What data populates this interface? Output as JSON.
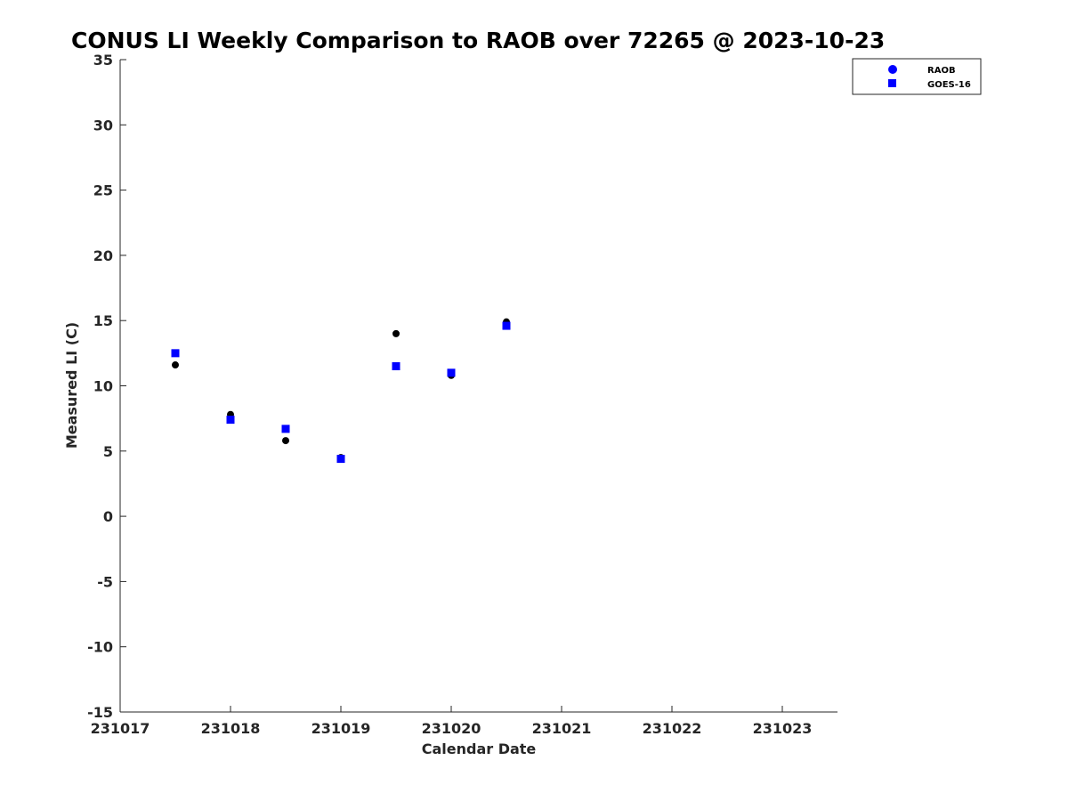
{
  "chart_data": {
    "type": "scatter",
    "title": "CONUS LI Weekly Comparison to RAOB over 72265 @ 2023-10-23",
    "xlabel": "Calendar Date",
    "ylabel": "Measured LI (C)",
    "xlim": [
      231017,
      231023.5
    ],
    "ylim": [
      -15,
      35
    ],
    "xticks": [
      231017,
      231018,
      231019,
      231020,
      231021,
      231022,
      231023
    ],
    "xtick_labels": [
      "231017",
      "231018",
      "231019",
      "231020",
      "231021",
      "231022",
      "231023"
    ],
    "yticks": [
      -15,
      -10,
      -5,
      0,
      5,
      10,
      15,
      20,
      25,
      30,
      35
    ],
    "grid": false,
    "legend_position": "top-right",
    "series": [
      {
        "name": "RAOB",
        "marker": "circle",
        "color": "#000000",
        "legend_color": "#0000ff",
        "x": [
          231017.5,
          231018.0,
          231018.5,
          231019.0,
          231019.5,
          231020.0,
          231020.5
        ],
        "y": [
          11.6,
          7.8,
          5.8,
          4.5,
          14.0,
          10.8,
          14.9
        ]
      },
      {
        "name": "GOES-16",
        "marker": "square",
        "color": "#0000ff",
        "legend_color": "#0000ff",
        "x": [
          231017.5,
          231018.0,
          231018.5,
          231019.0,
          231019.5,
          231020.0,
          231020.5
        ],
        "y": [
          12.5,
          7.4,
          6.7,
          4.4,
          11.5,
          11.0,
          14.6
        ]
      }
    ]
  }
}
